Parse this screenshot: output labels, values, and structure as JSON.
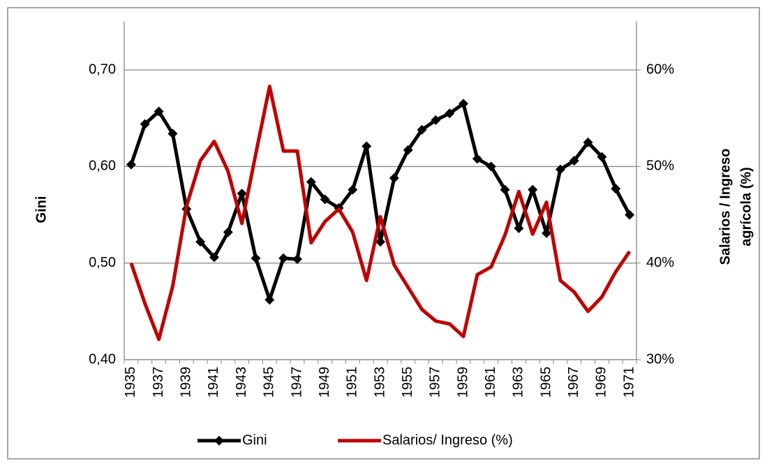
{
  "chart_data": {
    "type": "line",
    "y_label": "Gini",
    "y2_label": [
      "Salarios / Ingreso",
      "agrícola (%)"
    ],
    "categories": [
      "1935",
      null,
      "1937",
      null,
      "1939",
      null,
      "1941",
      null,
      "1943",
      null,
      "1945",
      null,
      "1947",
      null,
      "1949",
      null,
      "1951",
      null,
      "1953",
      null,
      "1955",
      null,
      "1957",
      null,
      "1959",
      null,
      "1961",
      null,
      "1963",
      null,
      "1965",
      null,
      "1967",
      null,
      "1969",
      null,
      "1971"
    ],
    "series": [
      {
        "name": "Gini",
        "color": "#000000",
        "marker": "diamond",
        "values": [
          0.602,
          0.644,
          0.657,
          0.634,
          0.556,
          0.522,
          0.506,
          0.532,
          0.572,
          0.505,
          0.462,
          0.505,
          0.504,
          0.584,
          0.566,
          0.557,
          0.576,
          0.621,
          0.522,
          0.588,
          0.617,
          0.638,
          0.648,
          0.655,
          0.665,
          0.608,
          0.6,
          0.576,
          0.536,
          0.576,
          0.531,
          0.597,
          0.606,
          0.625,
          0.61,
          0.577,
          0.55
        ]
      },
      {
        "name": "Salarios/ Ingreso (%)",
        "color": "#c00000",
        "axis": "y2",
        "values": [
          40.0,
          35.8,
          32.1,
          37.6,
          45.9,
          50.6,
          52.6,
          49.5,
          44.1,
          51.3,
          58.3,
          51.6,
          51.6,
          42.1,
          44.3,
          45.6,
          43.2,
          38.2,
          44.8,
          39.8,
          37.5,
          35.2,
          34.0,
          33.7,
          32.4,
          38.8,
          39.6,
          42.9,
          47.4,
          43.0,
          46.3,
          38.2,
          37.0,
          35.0,
          36.5,
          39.1,
          41.2
        ]
      }
    ],
    "ylim": [
      0.4,
      0.75
    ],
    "yticks": [
      {
        "value": 0.4,
        "label": "0,40"
      },
      {
        "value": 0.5,
        "label": "0,50"
      },
      {
        "value": 0.6,
        "label": "0,60"
      },
      {
        "value": 0.7,
        "label": "0,70"
      }
    ],
    "y2lim": [
      30,
      65
    ],
    "y2ticks": [
      {
        "value": 30,
        "label": "30%"
      },
      {
        "value": 40,
        "label": "40%"
      },
      {
        "value": 50,
        "label": "50%"
      },
      {
        "value": 60,
        "label": "60%"
      }
    ],
    "grid": true,
    "legend": "bottom"
  }
}
